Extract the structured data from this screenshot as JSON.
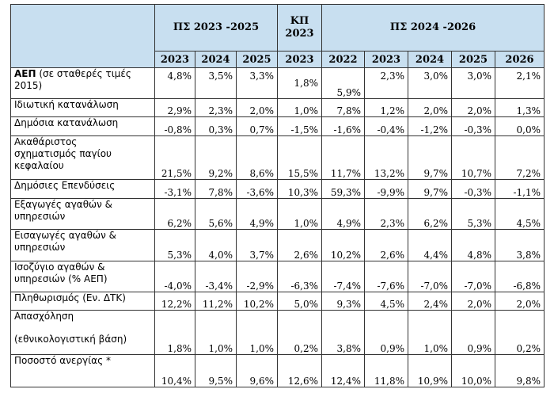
{
  "header": {
    "groups": [
      "ΠΣ 2023 -2025",
      "ΚΠ 2023",
      "ΠΣ 2024 -2026"
    ],
    "kp_line1": "ΚΠ",
    "kp_line2": "2023",
    "years": [
      "2023",
      "2024",
      "2025",
      "2023",
      "2022",
      "2023",
      "2024",
      "2025",
      "2026"
    ]
  },
  "rows": [
    {
      "label_bold": "ΑΕΠ",
      "label_rest": " (σε σταθερές τιμές 2015)",
      "values": [
        "4,8%",
        "3,5%",
        "3,3%",
        "1,8%",
        "5,9%",
        "2,3%",
        "3,0%",
        "3,0%",
        "2,1%"
      ]
    },
    {
      "label": "Ιδιωτική κατανάλωση",
      "values": [
        "2,9%",
        "2,3%",
        "2,0%",
        "1,0%",
        "7,8%",
        "1,2%",
        "2,0%",
        "2,0%",
        "1,3%"
      ]
    },
    {
      "label": "Δημόσια κατανάλωση",
      "values": [
        "-0,8%",
        "0,3%",
        "0,7%",
        "-1,5%",
        "-1,6%",
        "-0,4%",
        "-1,2%",
        "-0,3%",
        "0,0%"
      ]
    },
    {
      "label_lines": [
        "Ακαθάριστος",
        "σχηματισμός παγίου",
        "κεφαλαίου"
      ],
      "values": [
        "21,5%",
        "9,2%",
        "8,6%",
        "15,5%",
        "11,7%",
        "13,2%",
        "9,7%",
        "10,7%",
        "7,2%"
      ]
    },
    {
      "label": "Δημόσιες Επενδύσεις",
      "values": [
        "-3,1%",
        "7,8%",
        "-3,6%",
        "10,3%",
        "59,3%",
        "-9,9%",
        "9,7%",
        "-0,3%",
        "-1,1%"
      ]
    },
    {
      "label_lines": [
        "Εξαγωγές αγαθών &",
        "υπηρεσιών"
      ],
      "values": [
        "6,2%",
        "5,6%",
        "4,9%",
        "1,0%",
        "4,9%",
        "2,3%",
        "6,2%",
        "5,3%",
        "4,5%"
      ]
    },
    {
      "label_lines": [
        "Εισαγωγές αγαθών &",
        "υπηρεσιών"
      ],
      "values": [
        "5,3%",
        "4,0%",
        "3,7%",
        "2,6%",
        "10,2%",
        "2,6%",
        "4,4%",
        "4,8%",
        "3,8%"
      ]
    },
    {
      "label_lines": [
        "Ισοζύγιο αγαθών &",
        "υπηρεσιών (% ΑΕΠ)"
      ],
      "values": [
        "-4,0%",
        "-3,4%",
        "-2,9%",
        "-6,3%",
        "-7,4%",
        "-7,6%",
        "-7,0%",
        "-7,0%",
        "-6,8%"
      ]
    },
    {
      "label": "Πληθωρισμός (Εν. ΔΤΚ)",
      "values": [
        "12,2%",
        "11,2%",
        "10,2%",
        "5,0%",
        "9,3%",
        "4,5%",
        "2,4%",
        "2,0%",
        "2,0%"
      ]
    },
    {
      "label_lines": [
        "Απασχόληση",
        "(εθνικολογιστική βάση)"
      ],
      "values": [
        "1,8%",
        "1,0%",
        "1,0%",
        "0,2%",
        "3,8%",
        "0,9%",
        "1,0%",
        "0,9%",
        "0,2%"
      ]
    },
    {
      "label": "Ποσοστό ανεργίας *",
      "values": [
        "10,4%",
        "9,5%",
        "9,6%",
        "12,6%",
        "12,4%",
        "11,8%",
        "10,9%",
        "10,0%",
        "9,8%"
      ]
    }
  ]
}
